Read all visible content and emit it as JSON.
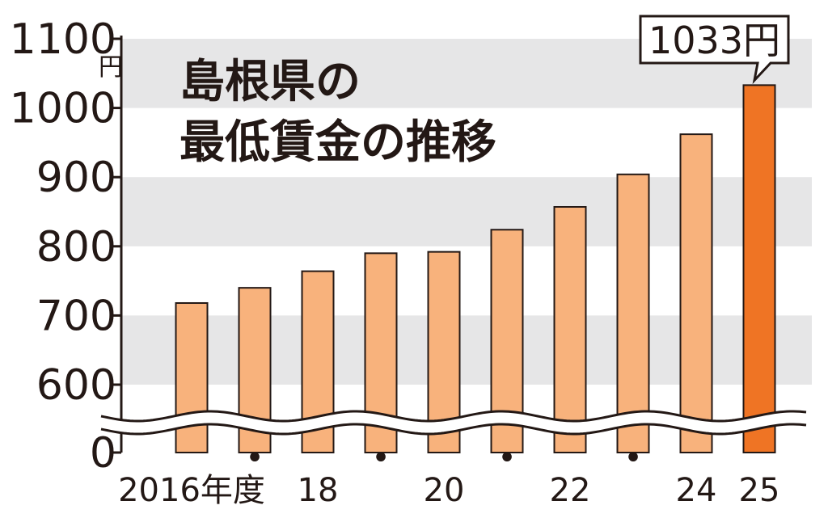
{
  "chart_data": {
    "type": "bar",
    "title": [
      "島根県の",
      "最低賃金の推移"
    ],
    "unit": "円",
    "categories": [
      "2016",
      "2017",
      "2018",
      "2019",
      "2020",
      "2021",
      "2022",
      "2023",
      "2024",
      "2025"
    ],
    "values": [
      718,
      740,
      764,
      790,
      792,
      824,
      857,
      904,
      962,
      1033
    ],
    "x_tick_labels": [
      "2016年度",
      "•",
      "18",
      "•",
      "20",
      "•",
      "22",
      "•",
      "24",
      "25"
    ],
    "y_ticks": [
      1100,
      1000,
      900,
      800,
      700,
      600,
      0
    ],
    "ylim": [
      600,
      1100
    ],
    "axis_break": "between 0 and 600",
    "highlight": {
      "category": "2025",
      "label": "1033円"
    },
    "colors": {
      "bar": "#f8b27c",
      "bar_highlight": "#ef7424",
      "band": "#e6e6e7",
      "text": "#231815"
    }
  }
}
